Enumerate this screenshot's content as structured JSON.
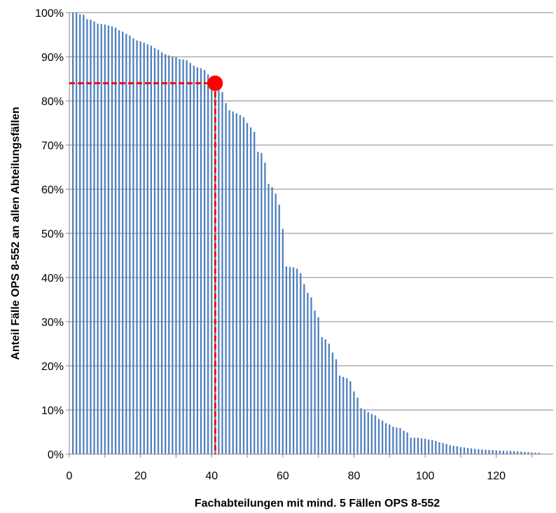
{
  "chart_data": {
    "type": "bar",
    "title": "",
    "xlabel": "Fachabteilungen mit mind. 5 Fällen OPS 8-552",
    "ylabel": "Anteil Fälle OPS 8-552 an allen Abteilungsfällen",
    "x_ticks": [
      "0",
      "20",
      "40",
      "60",
      "80",
      "100",
      "120"
    ],
    "x_tick_values": [
      0,
      20,
      40,
      60,
      80,
      100,
      120
    ],
    "y_ticks": [
      "0%",
      "10%",
      "20%",
      "30%",
      "40%",
      "50%",
      "60%",
      "70%",
      "80%",
      "90%",
      "100%"
    ],
    "y_tick_values": [
      0,
      10,
      20,
      30,
      40,
      50,
      60,
      70,
      80,
      90,
      100
    ],
    "xlim": [
      0,
      136
    ],
    "ylim": [
      0,
      100
    ],
    "grid": "horizontal",
    "legend": "none",
    "bar_color": "#4F81BD",
    "marker": {
      "x": 41,
      "y": 84,
      "color": "#FF0000"
    },
    "x": [
      1,
      2,
      3,
      4,
      5,
      6,
      7,
      8,
      9,
      10,
      11,
      12,
      13,
      14,
      15,
      16,
      17,
      18,
      19,
      20,
      21,
      22,
      23,
      24,
      25,
      26,
      27,
      28,
      29,
      30,
      31,
      32,
      33,
      34,
      35,
      36,
      37,
      38,
      39,
      40,
      41,
      42,
      43,
      44,
      45,
      46,
      47,
      48,
      49,
      50,
      51,
      52,
      53,
      54,
      55,
      56,
      57,
      58,
      59,
      60,
      61,
      62,
      63,
      64,
      65,
      66,
      67,
      68,
      69,
      70,
      71,
      72,
      73,
      74,
      75,
      76,
      77,
      78,
      79,
      80,
      81,
      82,
      83,
      84,
      85,
      86,
      87,
      88,
      89,
      90,
      91,
      92,
      93,
      94,
      95,
      96,
      97,
      98,
      99,
      100,
      101,
      102,
      103,
      104,
      105,
      106,
      107,
      108,
      109,
      110,
      111,
      112,
      113,
      114,
      115,
      116,
      117,
      118,
      119,
      120,
      121,
      122,
      123,
      124,
      125,
      126,
      127,
      128,
      129,
      130,
      131,
      132
    ],
    "values": [
      100,
      100,
      99.6,
      99.5,
      98.5,
      98.4,
      98,
      97.5,
      97.4,
      97.3,
      97.1,
      96.9,
      96.6,
      96,
      95.7,
      95.2,
      94.8,
      94.2,
      93.7,
      93.5,
      93.2,
      92.8,
      92.5,
      92,
      91.6,
      91,
      90.6,
      90.3,
      90.1,
      89.9,
      89.5,
      89.4,
      89.2,
      88.6,
      88,
      87.6,
      87.4,
      87,
      86,
      85.5,
      84.8,
      84,
      82,
      79.5,
      77.9,
      77.6,
      77.2,
      76.8,
      76.3,
      75,
      74,
      73,
      68.5,
      68.2,
      66,
      61.2,
      60.5,
      59,
      56.5,
      51,
      42.5,
      42.4,
      42.3,
      42,
      41,
      38.5,
      36.5,
      35.5,
      32.5,
      31,
      26.5,
      26,
      25,
      23,
      21.5,
      17.8,
      17.5,
      17.2,
      16.5,
      14.2,
      12.8,
      10.4,
      10,
      9.5,
      9.1,
      8.8,
      8,
      7.6,
      7,
      6.7,
      6.2,
      6,
      5.9,
      5.3,
      4.9,
      3.7,
      3.7,
      3.7,
      3.6,
      3.5,
      3.3,
      3.2,
      3,
      2.7,
      2.5,
      2.3,
      2,
      1.9,
      1.8,
      1.6,
      1.5,
      1.4,
      1.3,
      1.2,
      1.1,
      1.05,
      1,
      0.95,
      0.9,
      0.85,
      0.8,
      0.75,
      0.7,
      0.7,
      0.65,
      0.6,
      0.55,
      0.5,
      0.45,
      0.4,
      0.35,
      0.3
    ]
  }
}
